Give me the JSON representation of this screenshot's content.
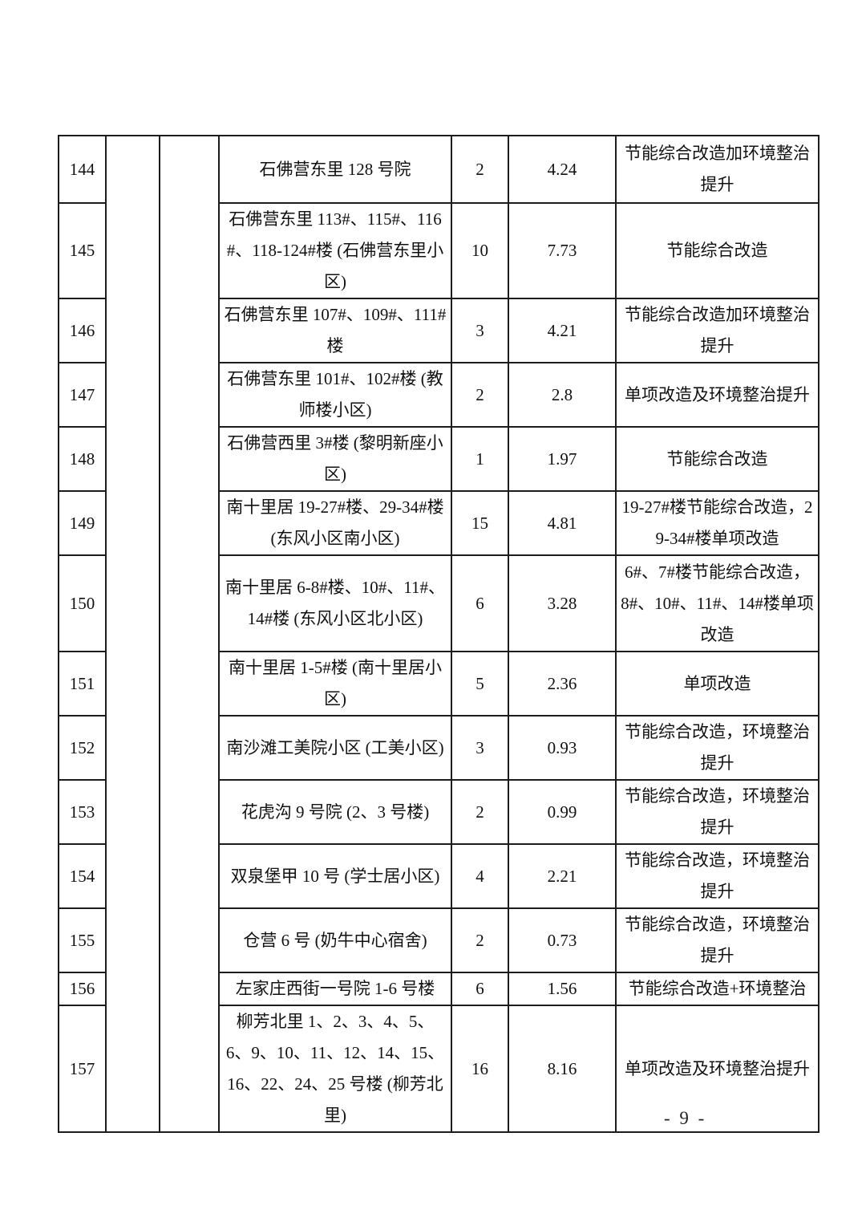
{
  "page": {
    "number_label": "- 9 -"
  },
  "table": {
    "rows": [
      {
        "serial": "144",
        "name": "石佛营东里 128 号院",
        "building_count": "2",
        "area": "4.24",
        "renovation_type": "节能综合改造加环境整治提升"
      },
      {
        "serial": "145",
        "name": "石佛营东里 113#、115#、116#、118-124#楼 (石佛营东里小区)",
        "building_count": "10",
        "area": "7.73",
        "renovation_type": "节能综合改造"
      },
      {
        "serial": "146",
        "name": "石佛营东里 107#、109#、111#楼",
        "building_count": "3",
        "area": "4.21",
        "renovation_type": "节能综合改造加环境整治提升"
      },
      {
        "serial": "147",
        "name": "石佛营东里 101#、102#楼 (教师楼小区)",
        "building_count": "2",
        "area": "2.8",
        "renovation_type": "单项改造及环境整治提升"
      },
      {
        "serial": "148",
        "name": "石佛营西里 3#楼 (黎明新座小区)",
        "building_count": "1",
        "area": "1.97",
        "renovation_type": "节能综合改造"
      },
      {
        "serial": "149",
        "name": "南十里居 19-27#楼、29-34#楼 (东风小区南小区)",
        "building_count": "15",
        "area": "4.81",
        "renovation_type": "19-27#楼节能综合改造，29-34#楼单项改造"
      },
      {
        "serial": "150",
        "name": "南十里居 6-8#楼、10#、11#、14#楼 (东风小区北小区)",
        "building_count": "6",
        "area": "3.28",
        "renovation_type": "6#、7#楼节能综合改造，8#、10#、11#、14#楼单项改造"
      },
      {
        "serial": "151",
        "name": "南十里居 1-5#楼 (南十里居小区)",
        "building_count": "5",
        "area": "2.36",
        "renovation_type": "单项改造"
      },
      {
        "serial": "152",
        "name": "南沙滩工美院小区 (工美小区)",
        "building_count": "3",
        "area": "0.93",
        "renovation_type": "节能综合改造，环境整治提升"
      },
      {
        "serial": "153",
        "name": "花虎沟 9 号院 (2、3 号楼)",
        "building_count": "2",
        "area": "0.99",
        "renovation_type": "节能综合改造，环境整治提升"
      },
      {
        "serial": "154",
        "name": "双泉堡甲 10 号 (学士居小区)",
        "building_count": "4",
        "area": "2.21",
        "renovation_type": "节能综合改造，环境整治提升"
      },
      {
        "serial": "155",
        "name": "仓营 6 号 (奶牛中心宿舍)",
        "building_count": "2",
        "area": "0.73",
        "renovation_type": "节能综合改造，环境整治提升"
      },
      {
        "serial": "156",
        "name": "左家庄西街一号院 1-6 号楼",
        "building_count": "6",
        "area": "1.56",
        "renovation_type": "节能综合改造+环境整治"
      },
      {
        "serial": "157",
        "name": "柳芳北里 1、2、3、4、5、6、9、10、11、12、14、15、16、22、24、25 号楼 (柳芳北里)",
        "building_count": "16",
        "area": "8.16",
        "renovation_type": "单项改造及环境整治提升"
      }
    ]
  }
}
